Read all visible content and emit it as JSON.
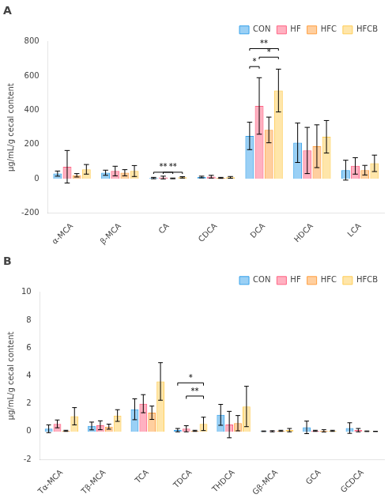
{
  "chart_data": [
    {
      "type": "bar",
      "title": "A",
      "ylabel": "μg/mL/g cecal content",
      "categories": [
        "α-MCA",
        "β-MCA",
        "CA",
        "CDCA",
        "DCA",
        "HDCA",
        "LCA"
      ],
      "series": [
        {
          "name": "CON",
          "values": [
            30,
            35,
            4,
            10,
            250,
            210,
            50
          ],
          "errors": [
            15,
            15,
            4,
            5,
            80,
            115,
            58
          ]
        },
        {
          "name": "HF",
          "values": [
            70,
            45,
            7,
            12,
            425,
            165,
            75
          ],
          "errors": [
            95,
            28,
            8,
            8,
            165,
            135,
            48
          ]
        },
        {
          "name": "HFC",
          "values": [
            20,
            35,
            2,
            5,
            285,
            190,
            50
          ],
          "errors": [
            10,
            18,
            2,
            3,
            75,
            125,
            28
          ]
        },
        {
          "name": "HFCB",
          "values": [
            55,
            45,
            8,
            8,
            515,
            245,
            90
          ],
          "errors": [
            28,
            32,
            4,
            5,
            125,
            95,
            48
          ]
        }
      ],
      "ylim": [
        -200,
        800
      ],
      "yticks": [
        -200,
        0,
        200,
        400,
        600,
        800
      ],
      "grid": false,
      "legend": "upper right",
      "annotations": [
        {
          "text": "**",
          "category": "CA",
          "series": [
            "CON",
            "HFC"
          ],
          "y": 38,
          "y_bottom": 28
        },
        {
          "text": "**",
          "category": "CA",
          "series": [
            "HF",
            "HFCB"
          ],
          "y": 38,
          "y_bottom": 28
        },
        {
          "text": "**",
          "category": "DCA",
          "series": [
            "CON",
            "HFCB"
          ],
          "y": 760,
          "y_bottom": 748
        },
        {
          "text": "*",
          "category": "DCA",
          "series": [
            "CON",
            "HF"
          ],
          "y": 655,
          "y_bottom": 643
        },
        {
          "text": "*",
          "category": "DCA",
          "series": [
            "HF",
            "HFCB"
          ],
          "y": 710,
          "y_bottom": 698
        }
      ]
    },
    {
      "type": "bar",
      "title": "B",
      "ylabel": "μg/mL/g cecal content",
      "categories": [
        "Tα-MCA",
        "Tβ-MCA",
        "TCA",
        "TDCA",
        "THDCA",
        "Gβ-MCA",
        "GCA",
        "GCDCA"
      ],
      "series": [
        {
          "name": "CON",
          "values": [
            0.2,
            0.4,
            1.6,
            0.1,
            1.2,
            0.02,
            0.3,
            0.25
          ],
          "errors": [
            0.28,
            0.28,
            0.75,
            0.12,
            0.75,
            0.02,
            0.45,
            0.38
          ]
        },
        {
          "name": "HF",
          "values": [
            0.55,
            0.45,
            2.0,
            0.2,
            0.5,
            0.02,
            0.05,
            0.1
          ],
          "errors": [
            0.28,
            0.32,
            0.65,
            0.22,
            0.95,
            0.04,
            0.04,
            0.12
          ]
        },
        {
          "name": "HFC",
          "values": [
            0.05,
            0.35,
            1.35,
            0.05,
            0.6,
            0.05,
            0.05,
            0.02
          ],
          "errors": [
            0.04,
            0.18,
            0.48,
            0.04,
            0.55,
            0.04,
            0.08,
            0.02
          ]
        },
        {
          "name": "HFCB",
          "values": [
            1.1,
            1.15,
            3.6,
            0.55,
            1.8,
            0.1,
            0.05,
            0.01
          ],
          "errors": [
            0.62,
            0.42,
            1.35,
            0.48,
            1.45,
            0.12,
            0.04,
            0.01
          ]
        }
      ],
      "ylim": [
        -2,
        10
      ],
      "yticks": [
        -2,
        0,
        2,
        4,
        6,
        8,
        10
      ],
      "grid": false,
      "legend": "upper right",
      "annotations": [
        {
          "text": "*",
          "category": "TDCA",
          "series": [
            "CON",
            "HFCB"
          ],
          "y": 3.5,
          "y_bottom": 3.3
        },
        {
          "text": "**",
          "category": "TDCA",
          "series": [
            "HF",
            "HFCB"
          ],
          "y": 2.55,
          "y_bottom": 2.35
        }
      ]
    }
  ]
}
